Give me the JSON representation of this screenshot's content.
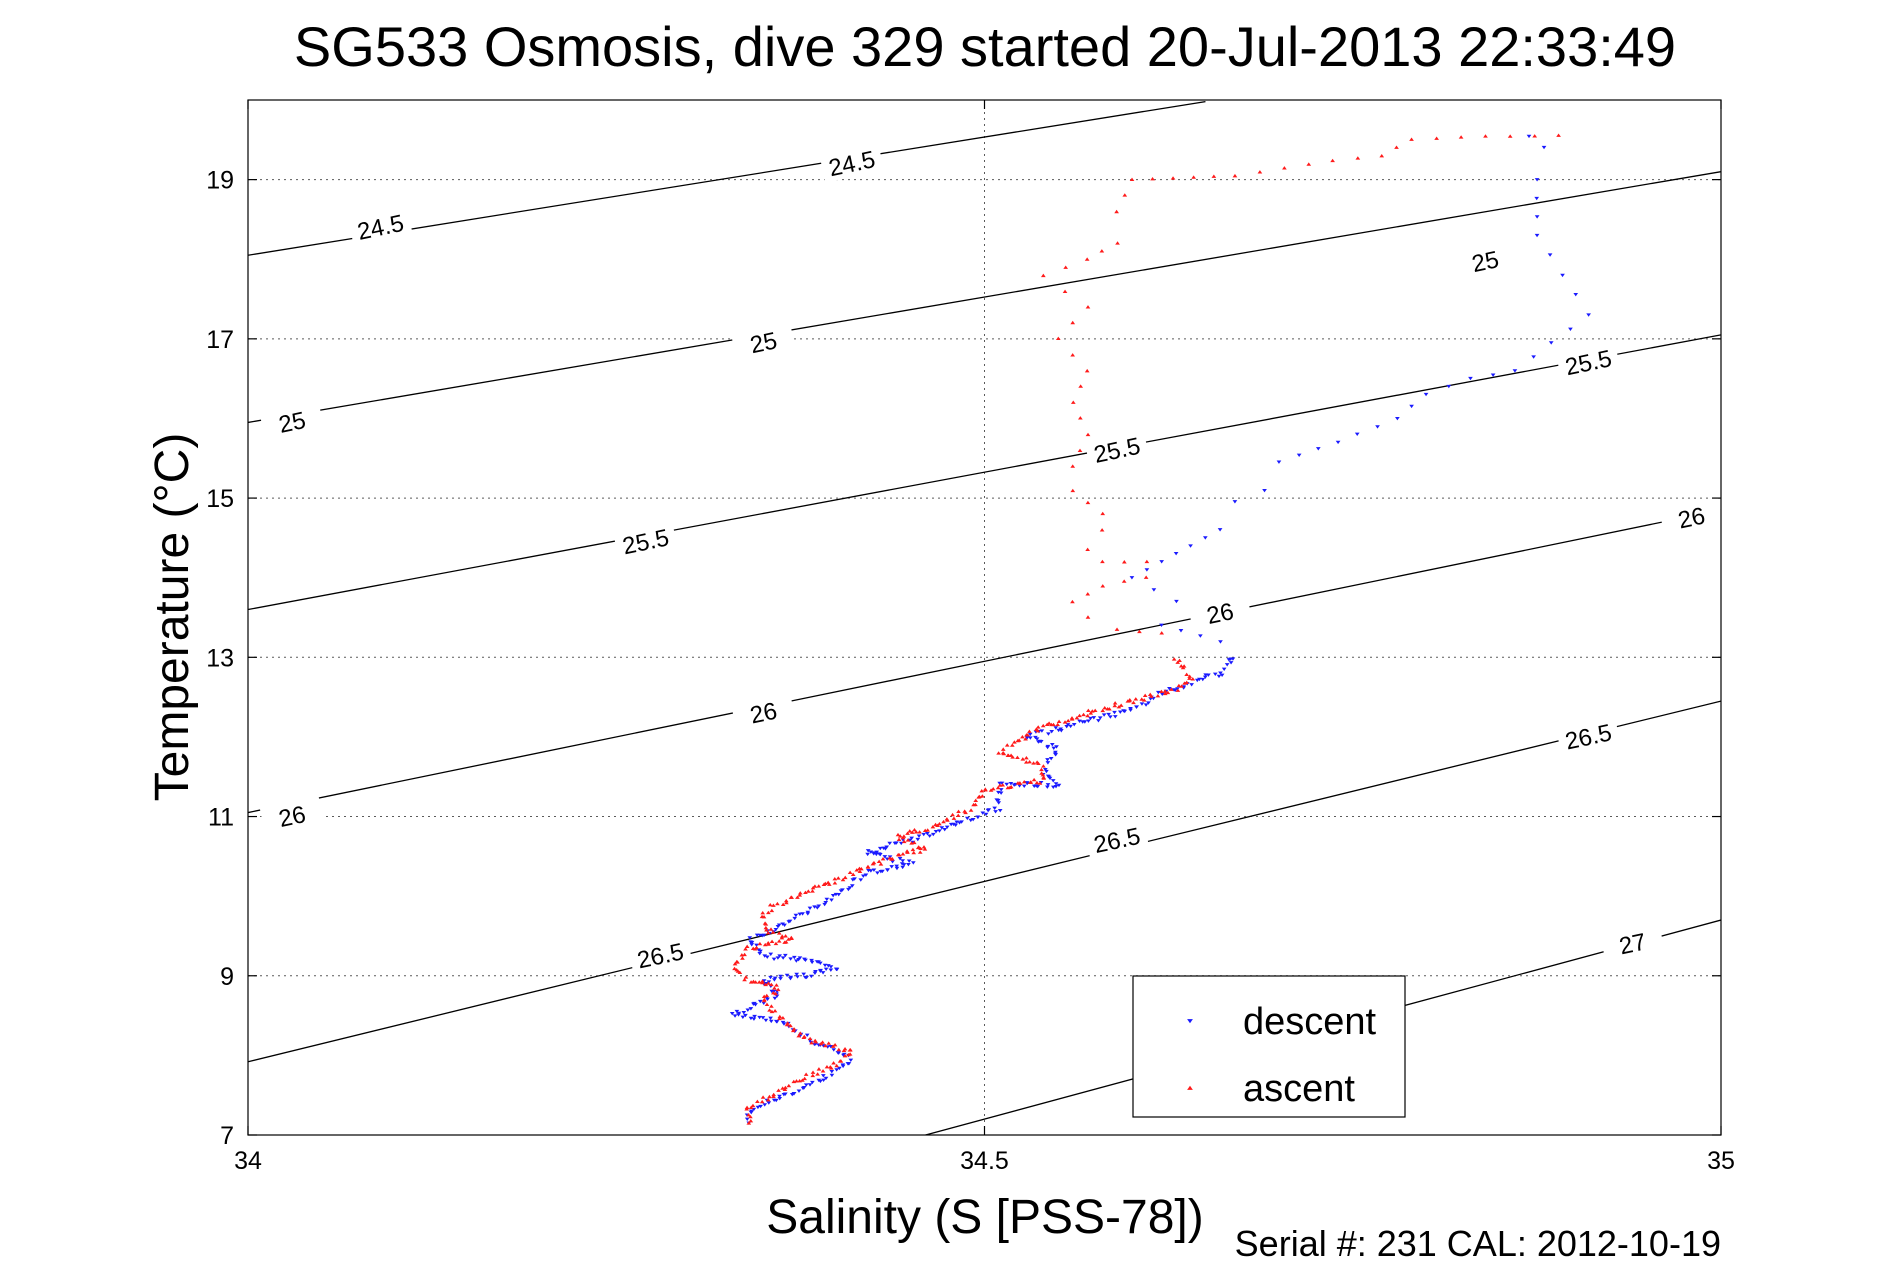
{
  "chart_data": {
    "type": "scatter",
    "title": "SG533 Osmosis, dive 329 started 20-Jul-2013 22:33:49",
    "xlabel": "Salinity (S [PSS-78])",
    "ylabel": "Temperature (°C)",
    "xlim": [
      34,
      35
    ],
    "ylim": [
      7,
      20
    ],
    "x_ticks": [
      "34",
      "34.5",
      "35"
    ],
    "y_ticks": [
      "7",
      "9",
      "11",
      "13",
      "15",
      "17",
      "19"
    ],
    "grid": true,
    "legend_position": "bottom-right",
    "footer": "Serial #: 231  CAL: 2012-10-19",
    "sigma_contours": [
      {
        "label": "24.5",
        "start": [
          34,
          18.05
        ],
        "end": [
          34.65,
          19.98
        ]
      },
      {
        "label": "25",
        "start": [
          34,
          15.95
        ],
        "end": [
          35,
          19.1
        ]
      },
      {
        "label": "25.5",
        "start": [
          34,
          13.6
        ],
        "end": [
          35,
          17.05
        ]
      },
      {
        "label": "26",
        "start": [
          34,
          11.05
        ],
        "end": [
          35,
          14.85
        ]
      },
      {
        "label": "26.5",
        "start": [
          34,
          7.92
        ],
        "end": [
          35,
          12.45
        ]
      },
      {
        "label": "27",
        "start": [
          34.46,
          7.0
        ],
        "end": [
          35,
          9.7
        ]
      }
    ],
    "contour_labels": [
      {
        "text": "24.5",
        "x": 34.09,
        "y": 18.4
      },
      {
        "text": "24.5",
        "x": 34.41,
        "y": 19.2
      },
      {
        "text": "25",
        "x": 34.03,
        "y": 15.95
      },
      {
        "text": "25",
        "x": 34.35,
        "y": 16.95
      },
      {
        "text": "25",
        "x": 34.84,
        "y": 17.97
      },
      {
        "text": "25.5",
        "x": 34.27,
        "y": 14.45
      },
      {
        "text": "25.5",
        "x": 34.59,
        "y": 15.6
      },
      {
        "text": "25.5",
        "x": 34.91,
        "y": 16.7
      },
      {
        "text": "26",
        "x": 34.03,
        "y": 11.0
      },
      {
        "text": "26",
        "x": 34.35,
        "y": 12.3
      },
      {
        "text": "26",
        "x": 34.66,
        "y": 13.55
      },
      {
        "text": "26",
        "x": 34.98,
        "y": 14.75
      },
      {
        "text": "26.5",
        "x": 34.28,
        "y": 9.25
      },
      {
        "text": "26.5",
        "x": 34.59,
        "y": 10.7
      },
      {
        "text": "26.5",
        "x": 34.91,
        "y": 12.0
      },
      {
        "text": "27",
        "x": 34.94,
        "y": 9.4
      }
    ],
    "series": [
      {
        "name": "descent",
        "color": "#1a1aff",
        "marker": "triangle-down",
        "path": [
          [
            34.87,
            19.55
          ],
          [
            34.88,
            19.4
          ],
          [
            34.875,
            19.0
          ],
          [
            34.875,
            18.3
          ],
          [
            34.91,
            17.3
          ],
          [
            34.86,
            16.6
          ],
          [
            34.83,
            16.5
          ],
          [
            34.8,
            16.3
          ],
          [
            34.78,
            16.0
          ],
          [
            34.74,
            15.7
          ],
          [
            34.7,
            15.45
          ],
          [
            34.69,
            15.1
          ],
          [
            34.67,
            14.95
          ],
          [
            34.66,
            14.6
          ],
          [
            34.64,
            14.4
          ],
          [
            34.62,
            14.2
          ],
          [
            34.6,
            14.0
          ],
          [
            34.63,
            13.7
          ],
          [
            34.62,
            13.4
          ],
          [
            34.66,
            13.2
          ],
          [
            34.67,
            13.0
          ],
          [
            34.66,
            12.8
          ],
          [
            34.62,
            12.55
          ],
          [
            34.6,
            12.35
          ],
          [
            34.57,
            12.2
          ],
          [
            34.53,
            12.0
          ],
          [
            34.55,
            11.85
          ],
          [
            34.54,
            11.55
          ],
          [
            34.55,
            11.4
          ],
          [
            34.51,
            11.4
          ],
          [
            34.51,
            11.1
          ],
          [
            34.48,
            10.9
          ],
          [
            34.45,
            10.7
          ],
          [
            34.42,
            10.55
          ],
          [
            34.45,
            10.4
          ],
          [
            34.42,
            10.3
          ],
          [
            34.41,
            10.15
          ],
          [
            34.39,
            9.9
          ],
          [
            34.36,
            9.6
          ],
          [
            34.34,
            9.45
          ],
          [
            34.35,
            9.25
          ],
          [
            34.38,
            9.2
          ],
          [
            34.4,
            9.1
          ],
          [
            34.38,
            9.0
          ],
          [
            34.35,
            8.95
          ],
          [
            34.36,
            8.75
          ],
          [
            34.34,
            8.6
          ],
          [
            34.33,
            8.5
          ],
          [
            34.36,
            8.45
          ],
          [
            34.38,
            8.2
          ],
          [
            34.4,
            8.05
          ],
          [
            34.41,
            7.95
          ],
          [
            34.4,
            7.8
          ],
          [
            34.38,
            7.6
          ],
          [
            34.35,
            7.4
          ],
          [
            34.34,
            7.25
          ],
          [
            34.34,
            7.15
          ]
        ]
      },
      {
        "name": "ascent",
        "color": "#ff1a1a",
        "marker": "triangle-up",
        "path": [
          [
            34.89,
            19.55
          ],
          [
            34.84,
            19.55
          ],
          [
            34.79,
            19.5
          ],
          [
            34.77,
            19.3
          ],
          [
            34.72,
            19.2
          ],
          [
            34.67,
            19.05
          ],
          [
            34.6,
            19.0
          ],
          [
            34.59,
            18.6
          ],
          [
            34.59,
            18.2
          ],
          [
            34.57,
            18.0
          ],
          [
            34.54,
            17.8
          ],
          [
            34.57,
            17.4
          ],
          [
            34.55,
            17.0
          ],
          [
            34.57,
            16.6
          ],
          [
            34.56,
            16.2
          ],
          [
            34.57,
            15.8
          ],
          [
            34.56,
            15.4
          ],
          [
            34.56,
            15.1
          ],
          [
            34.58,
            14.8
          ],
          [
            34.58,
            14.6
          ],
          [
            34.57,
            14.35
          ],
          [
            34.58,
            14.2
          ],
          [
            34.61,
            14.2
          ],
          [
            34.61,
            14.0
          ],
          [
            34.58,
            13.9
          ],
          [
            34.56,
            13.7
          ],
          [
            34.57,
            13.5
          ],
          [
            34.59,
            13.35
          ],
          [
            34.62,
            13.3
          ],
          [
            34.63,
            13.0
          ],
          [
            34.64,
            12.75
          ],
          [
            34.63,
            12.6
          ],
          [
            34.6,
            12.45
          ],
          [
            34.56,
            12.25
          ],
          [
            34.53,
            12.05
          ],
          [
            34.51,
            11.8
          ],
          [
            34.54,
            11.65
          ],
          [
            34.54,
            11.45
          ],
          [
            34.5,
            11.35
          ],
          [
            34.49,
            11.1
          ],
          [
            34.47,
            10.9
          ],
          [
            34.44,
            10.75
          ],
          [
            34.46,
            10.6
          ],
          [
            34.43,
            10.45
          ],
          [
            34.4,
            10.2
          ],
          [
            34.37,
            10.0
          ],
          [
            34.35,
            9.8
          ],
          [
            34.35,
            9.6
          ],
          [
            34.37,
            9.45
          ],
          [
            34.34,
            9.35
          ],
          [
            34.33,
            9.1
          ],
          [
            34.34,
            8.95
          ],
          [
            34.36,
            8.85
          ],
          [
            34.35,
            8.7
          ],
          [
            34.36,
            8.5
          ],
          [
            34.37,
            8.35
          ],
          [
            34.38,
            8.2
          ],
          [
            34.41,
            8.05
          ],
          [
            34.4,
            7.9
          ],
          [
            34.38,
            7.75
          ],
          [
            34.36,
            7.55
          ],
          [
            34.34,
            7.35
          ],
          [
            34.34,
            7.15
          ]
        ]
      }
    ]
  }
}
